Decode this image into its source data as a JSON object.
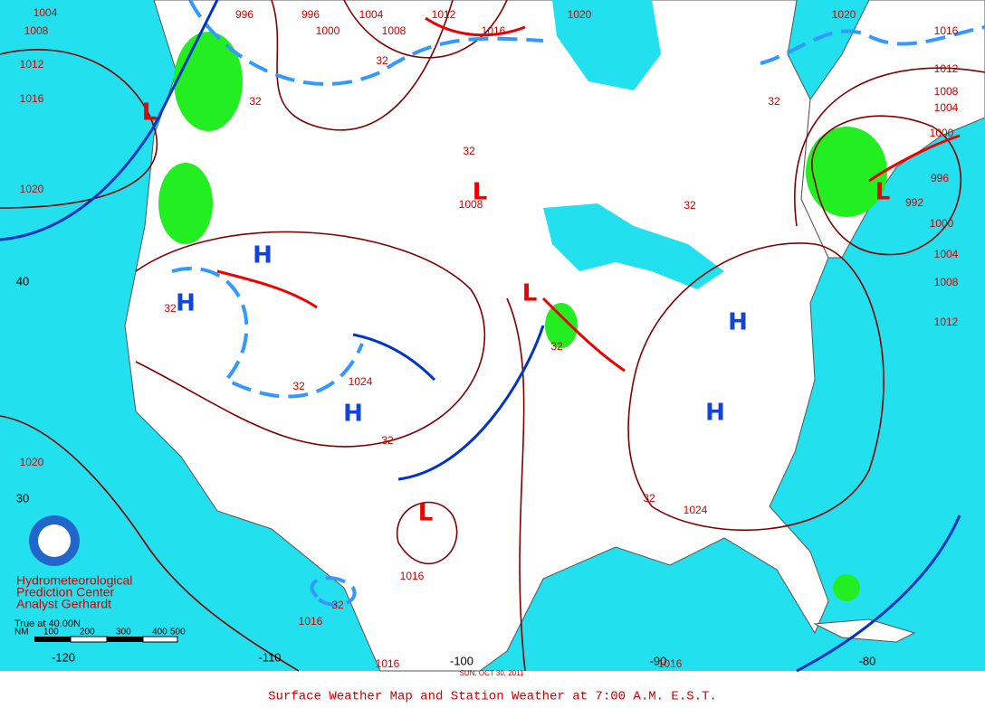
{
  "title": "Surface Weather Map and Station Weather at 7:00 A.M. E.S.T.",
  "date": "SUN, OCT 30, 2011",
  "credits": [
    "Hydrometeorological",
    "Prediction Center",
    "Analyst Gerhardt"
  ],
  "scale": {
    "title": "True at 40.00N",
    "unit": "NM",
    "ticks": [
      "100",
      "200",
      "300",
      "400",
      "500"
    ]
  },
  "lat_labels": [
    "40",
    "30"
  ],
  "lon_labels": [
    "-120",
    "-110",
    "-100",
    "-90",
    "-80"
  ],
  "isobar_labels": [
    "1004",
    "1008",
    "1012",
    "1016",
    "1020",
    "996",
    "996",
    "1000",
    "1004",
    "1008",
    "1012",
    "1016",
    "1020",
    "1020",
    "1016",
    "1012",
    "1008",
    "1004",
    "1000",
    "996",
    "992",
    "1000",
    "1004",
    "1008",
    "1012",
    "1024",
    "1024",
    "1016",
    "1016",
    "1016",
    "1016",
    "1020",
    "1008"
  ],
  "temperature_labels": [
    "32",
    "32",
    "32",
    "32",
    "32",
    "32",
    "32",
    "32",
    "32",
    "32",
    "32"
  ],
  "highs": [
    "H",
    "H",
    "H",
    "H",
    "H"
  ],
  "lows": [
    "L",
    "L",
    "L",
    "L",
    "L"
  ]
}
